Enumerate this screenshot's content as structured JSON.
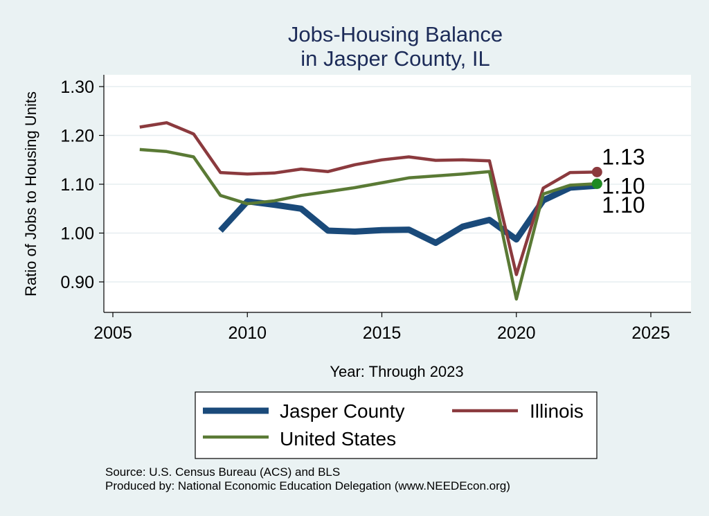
{
  "chart_data": {
    "type": "line",
    "title": [
      "Jobs-Housing Balance",
      "in Jasper County, IL"
    ],
    "xlabel": "Year: Through 2023",
    "ylabel": "Ratio of Jobs to Housing Units",
    "xlim": [
      2005,
      2025
    ],
    "ylim": [
      0.86,
      1.32
    ],
    "x_ticks": [
      2005,
      2010,
      2015,
      2020,
      2025
    ],
    "x_tick_labels": [
      "2005",
      "2010",
      "2015",
      "2020",
      "2025"
    ],
    "y_ticks": [
      0.9,
      1.0,
      1.1,
      1.2,
      1.3
    ],
    "y_tick_labels": [
      "0.90",
      "1.00",
      "1.10",
      "1.20",
      "1.30"
    ],
    "grid": true,
    "legend_position": "bottom",
    "series": [
      {
        "name": "Jasper County",
        "color": "#1a4a7a",
        "x": [
          2009,
          2010,
          2011,
          2012,
          2013,
          2014,
          2015,
          2016,
          2017,
          2018,
          2019,
          2020,
          2021,
          2022,
          2023
        ],
        "values": [
          1.005,
          1.065,
          1.058,
          1.05,
          1.005,
          1.003,
          1.006,
          1.007,
          0.98,
          1.013,
          1.027,
          0.987,
          1.067,
          1.093,
          1.097
        ],
        "end_label": "1.10",
        "end_marker": false
      },
      {
        "name": "Illinois",
        "color": "#8b3a3e",
        "x": [
          2006,
          2007,
          2008,
          2009,
          2010,
          2011,
          2012,
          2013,
          2014,
          2015,
          2016,
          2017,
          2018,
          2019,
          2020,
          2021,
          2022,
          2023
        ],
        "values": [
          1.217,
          1.226,
          1.203,
          1.124,
          1.121,
          1.123,
          1.131,
          1.126,
          1.14,
          1.15,
          1.156,
          1.149,
          1.15,
          1.148,
          0.915,
          1.092,
          1.124,
          1.125
        ],
        "end_label": "1.13",
        "end_marker": true
      },
      {
        "name": "United States",
        "color": "#5a7a35",
        "x": [
          2006,
          2007,
          2008,
          2009,
          2010,
          2011,
          2012,
          2013,
          2014,
          2015,
          2016,
          2017,
          2018,
          2019,
          2020,
          2021,
          2022,
          2023
        ],
        "values": [
          1.171,
          1.167,
          1.156,
          1.077,
          1.06,
          1.066,
          1.077,
          1.085,
          1.093,
          1.103,
          1.113,
          1.117,
          1.121,
          1.126,
          0.865,
          1.08,
          1.098,
          1.101
        ],
        "end_label": "1.10",
        "end_marker": true
      }
    ],
    "legend": [
      "Jasper County",
      "Illinois",
      "United States"
    ]
  },
  "footnotes": {
    "source": "Source: U.S. Census Bureau (ACS) and BLS",
    "produced": "Produced by: National Economic Education Delegation (www.NEEDEcon.org)"
  }
}
